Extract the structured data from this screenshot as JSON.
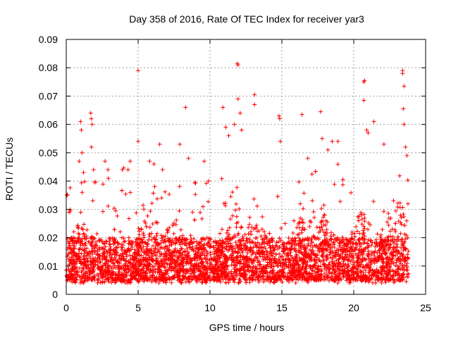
{
  "chart_data": {
    "type": "scatter",
    "title": "Day 358 of 2016, Rate Of TEC Index for receiver yar3",
    "xlabel": "GPS time / hours",
    "ylabel": "ROTI / TECUs",
    "xlim": [
      0,
      25
    ],
    "ylim": [
      0,
      0.09
    ],
    "xticks": [
      0,
      5,
      10,
      15,
      20,
      25
    ],
    "yticks": [
      0,
      0.01,
      0.02,
      0.03,
      0.04,
      0.05,
      0.06,
      0.07,
      0.08,
      0.09
    ],
    "xtick_labels": [
      "0",
      "5",
      "10",
      "15",
      "20",
      "25"
    ],
    "ytick_labels": [
      "0",
      "0.01",
      "0.02",
      "0.03",
      "0.04",
      "0.05",
      "0.06",
      "0.07",
      "0.08",
      "0.09"
    ],
    "grid": true,
    "marker": "+",
    "color": "#ff0000",
    "x_extent": [
      0,
      23.8
    ],
    "dense_band": [
      0.005,
      0.02
    ],
    "typical_ceiling": 0.04,
    "series": [
      {
        "name": "ROTI",
        "outliers": [
          {
            "x": 0.05,
            "y": 0.035
          },
          {
            "x": 0.2,
            "y": 0.029
          },
          {
            "x": 0.9,
            "y": 0.047
          },
          {
            "x": 1.0,
            "y": 0.061
          },
          {
            "x": 1.05,
            "y": 0.058
          },
          {
            "x": 1.1,
            "y": 0.05
          },
          {
            "x": 1.2,
            "y": 0.043
          },
          {
            "x": 1.7,
            "y": 0.064
          },
          {
            "x": 1.75,
            "y": 0.062
          },
          {
            "x": 1.8,
            "y": 0.06
          },
          {
            "x": 1.75,
            "y": 0.052
          },
          {
            "x": 1.9,
            "y": 0.044
          },
          {
            "x": 2.7,
            "y": 0.047
          },
          {
            "x": 2.9,
            "y": 0.044
          },
          {
            "x": 3.9,
            "y": 0.044
          },
          {
            "x": 4.3,
            "y": 0.044
          },
          {
            "x": 4.45,
            "y": 0.047
          },
          {
            "x": 5.0,
            "y": 0.079
          },
          {
            "x": 5.0,
            "y": 0.054
          },
          {
            "x": 5.8,
            "y": 0.047
          },
          {
            "x": 6.1,
            "y": 0.046
          },
          {
            "x": 6.5,
            "y": 0.053
          },
          {
            "x": 6.7,
            "y": 0.044
          },
          {
            "x": 7.9,
            "y": 0.053
          },
          {
            "x": 8.3,
            "y": 0.066
          },
          {
            "x": 8.5,
            "y": 0.048
          },
          {
            "x": 9.6,
            "y": 0.047
          },
          {
            "x": 9.9,
            "y": 0.04
          },
          {
            "x": 10.9,
            "y": 0.066
          },
          {
            "x": 11.1,
            "y": 0.059
          },
          {
            "x": 11.3,
            "y": 0.056
          },
          {
            "x": 11.7,
            "y": 0.06
          },
          {
            "x": 11.9,
            "y": 0.0815
          },
          {
            "x": 11.95,
            "y": 0.081
          },
          {
            "x": 11.95,
            "y": 0.069
          },
          {
            "x": 12.1,
            "y": 0.064
          },
          {
            "x": 12.2,
            "y": 0.058
          },
          {
            "x": 13.1,
            "y": 0.0705
          },
          {
            "x": 13.1,
            "y": 0.067
          },
          {
            "x": 14.8,
            "y": 0.063
          },
          {
            "x": 14.85,
            "y": 0.062
          },
          {
            "x": 14.9,
            "y": 0.054
          },
          {
            "x": 16.4,
            "y": 0.0635
          },
          {
            "x": 16.8,
            "y": 0.048
          },
          {
            "x": 17.7,
            "y": 0.0645
          },
          {
            "x": 17.8,
            "y": 0.055
          },
          {
            "x": 18.2,
            "y": 0.051
          },
          {
            "x": 18.5,
            "y": 0.054
          },
          {
            "x": 18.9,
            "y": 0.054
          },
          {
            "x": 20.7,
            "y": 0.075
          },
          {
            "x": 20.75,
            "y": 0.0755
          },
          {
            "x": 20.7,
            "y": 0.0685
          },
          {
            "x": 20.9,
            "y": 0.058
          },
          {
            "x": 21.0,
            "y": 0.057
          },
          {
            "x": 21.4,
            "y": 0.061
          },
          {
            "x": 22.1,
            "y": 0.053
          },
          {
            "x": 23.4,
            "y": 0.079
          },
          {
            "x": 23.4,
            "y": 0.078
          },
          {
            "x": 23.5,
            "y": 0.0735
          },
          {
            "x": 23.45,
            "y": 0.0655
          },
          {
            "x": 23.5,
            "y": 0.06
          },
          {
            "x": 23.6,
            "y": 0.052
          },
          {
            "x": 23.7,
            "y": 0.049
          }
        ]
      }
    ]
  }
}
